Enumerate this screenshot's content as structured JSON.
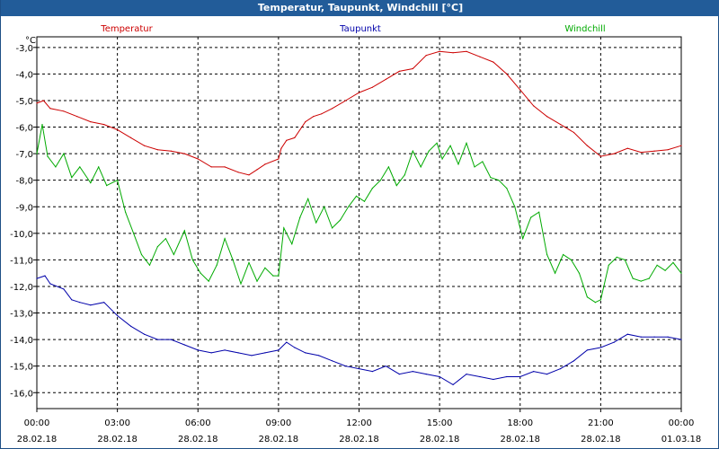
{
  "window": {
    "title": "Temperatur, Taupunkt, Windchill [°C]"
  },
  "colors": {
    "temperature": "#cc0000",
    "dewpoint": "#0000aa",
    "windchill": "#00aa00",
    "titlebar": "#225c99",
    "grid": "#000000"
  },
  "chart_data": {
    "type": "line",
    "title": "Temperatur, Taupunkt, Windchill [°C]",
    "ylabel": "°C",
    "xlabel": "",
    "ylim": [
      -16.0,
      -3.0
    ],
    "xlim": [
      0,
      24
    ],
    "grid": true,
    "legend": "top",
    "yticks": [
      "-3,0",
      "-4,0",
      "-5,0",
      "-6,0",
      "-7,0",
      "-8,0",
      "-9,0",
      "-10,0",
      "-11,0",
      "-12,0",
      "-13,0",
      "-14,0",
      "-15,0",
      "-16,0"
    ],
    "yticks_values": [
      -3,
      -4,
      -5,
      -6,
      -7,
      -8,
      -9,
      -10,
      -11,
      -12,
      -13,
      -14,
      -15,
      -16
    ],
    "xticks": [
      {
        "value": 0,
        "time": "00:00",
        "date": "28.02.18"
      },
      {
        "value": 3,
        "time": "03:00",
        "date": "28.02.18"
      },
      {
        "value": 6,
        "time": "06:00",
        "date": "28.02.18"
      },
      {
        "value": 9,
        "time": "09:00",
        "date": "28.02.18"
      },
      {
        "value": 12,
        "time": "12:00",
        "date": "28.02.18"
      },
      {
        "value": 15,
        "time": "15:00",
        "date": "28.02.18"
      },
      {
        "value": 18,
        "time": "18:00",
        "date": "28.02.18"
      },
      {
        "value": 21,
        "time": "21:00",
        "date": "28.02.18"
      },
      {
        "value": 24,
        "time": "00:00",
        "date": "01.03.18"
      }
    ],
    "series": [
      {
        "name": "Temperatur",
        "color": "#cc0000",
        "points": [
          [
            0,
            -5.1
          ],
          [
            0.25,
            -5.0
          ],
          [
            0.5,
            -5.3
          ],
          [
            1,
            -5.4
          ],
          [
            1.5,
            -5.6
          ],
          [
            2,
            -5.8
          ],
          [
            2.5,
            -5.9
          ],
          [
            3,
            -6.1
          ],
          [
            3.5,
            -6.4
          ],
          [
            4,
            -6.7
          ],
          [
            4.5,
            -6.85
          ],
          [
            5,
            -6.9
          ],
          [
            5.5,
            -7.0
          ],
          [
            6,
            -7.2
          ],
          [
            6.5,
            -7.5
          ],
          [
            7,
            -7.5
          ],
          [
            7.5,
            -7.7
          ],
          [
            7.9,
            -7.8
          ],
          [
            8.2,
            -7.6
          ],
          [
            8.5,
            -7.4
          ],
          [
            9,
            -7.2
          ],
          [
            9.1,
            -6.8
          ],
          [
            9.3,
            -6.5
          ],
          [
            9.6,
            -6.4
          ],
          [
            10,
            -5.8
          ],
          [
            10.3,
            -5.6
          ],
          [
            10.6,
            -5.5
          ],
          [
            11,
            -5.3
          ],
          [
            11.5,
            -5.0
          ],
          [
            12,
            -4.7
          ],
          [
            12.5,
            -4.5
          ],
          [
            13,
            -4.2
          ],
          [
            13.5,
            -3.9
          ],
          [
            14,
            -3.8
          ],
          [
            14.5,
            -3.3
          ],
          [
            15,
            -3.15
          ],
          [
            15.5,
            -3.2
          ],
          [
            16,
            -3.15
          ],
          [
            16.5,
            -3.35
          ],
          [
            17,
            -3.55
          ],
          [
            17.5,
            -4.0
          ],
          [
            18,
            -4.6
          ],
          [
            18.5,
            -5.2
          ],
          [
            19,
            -5.6
          ],
          [
            19.5,
            -5.9
          ],
          [
            20,
            -6.2
          ],
          [
            20.5,
            -6.7
          ],
          [
            21,
            -7.1
          ],
          [
            21.5,
            -7.0
          ],
          [
            22,
            -6.8
          ],
          [
            22.5,
            -6.95
          ],
          [
            23,
            -6.9
          ],
          [
            23.5,
            -6.85
          ],
          [
            24,
            -6.7
          ]
        ]
      },
      {
        "name": "Taupunkt",
        "color": "#0000aa",
        "points": [
          [
            0,
            -11.7
          ],
          [
            0.3,
            -11.6
          ],
          [
            0.5,
            -11.9
          ],
          [
            1,
            -12.1
          ],
          [
            1.3,
            -12.5
          ],
          [
            1.6,
            -12.6
          ],
          [
            2,
            -12.7
          ],
          [
            2.5,
            -12.6
          ],
          [
            3,
            -13.1
          ],
          [
            3.5,
            -13.5
          ],
          [
            4,
            -13.8
          ],
          [
            4.5,
            -14.0
          ],
          [
            5,
            -14.0
          ],
          [
            5.5,
            -14.2
          ],
          [
            6,
            -14.4
          ],
          [
            6.5,
            -14.5
          ],
          [
            7,
            -14.4
          ],
          [
            7.5,
            -14.5
          ],
          [
            8,
            -14.6
          ],
          [
            8.5,
            -14.5
          ],
          [
            9,
            -14.4
          ],
          [
            9.3,
            -14.1
          ],
          [
            9.6,
            -14.3
          ],
          [
            10,
            -14.5
          ],
          [
            10.5,
            -14.6
          ],
          [
            11,
            -14.8
          ],
          [
            11.5,
            -15.0
          ],
          [
            12,
            -15.1
          ],
          [
            12.5,
            -15.2
          ],
          [
            13,
            -15.0
          ],
          [
            13.5,
            -15.3
          ],
          [
            14,
            -15.2
          ],
          [
            14.5,
            -15.3
          ],
          [
            15,
            -15.4
          ],
          [
            15.5,
            -15.7
          ],
          [
            16,
            -15.3
          ],
          [
            16.5,
            -15.4
          ],
          [
            17,
            -15.5
          ],
          [
            17.5,
            -15.4
          ],
          [
            18,
            -15.4
          ],
          [
            18.5,
            -15.2
          ],
          [
            19,
            -15.3
          ],
          [
            19.5,
            -15.1
          ],
          [
            20,
            -14.8
          ],
          [
            20.5,
            -14.4
          ],
          [
            21,
            -14.3
          ],
          [
            21.5,
            -14.1
          ],
          [
            22,
            -13.8
          ],
          [
            22.5,
            -13.9
          ],
          [
            23,
            -13.9
          ],
          [
            23.5,
            -13.9
          ],
          [
            24,
            -14.0
          ]
        ]
      },
      {
        "name": "Windchill",
        "color": "#00aa00",
        "points": [
          [
            0,
            -7.0
          ],
          [
            0.2,
            -5.9
          ],
          [
            0.4,
            -7.1
          ],
          [
            0.7,
            -7.5
          ],
          [
            1,
            -7.0
          ],
          [
            1.3,
            -7.9
          ],
          [
            1.6,
            -7.5
          ],
          [
            2,
            -8.1
          ],
          [
            2.3,
            -7.5
          ],
          [
            2.6,
            -8.2
          ],
          [
            3,
            -8.0
          ],
          [
            3.3,
            -9.2
          ],
          [
            3.6,
            -10.0
          ],
          [
            3.9,
            -10.8
          ],
          [
            4.2,
            -11.2
          ],
          [
            4.5,
            -10.5
          ],
          [
            4.8,
            -10.2
          ],
          [
            5.1,
            -10.8
          ],
          [
            5.5,
            -9.9
          ],
          [
            5.8,
            -11.0
          ],
          [
            6.1,
            -11.5
          ],
          [
            6.4,
            -11.8
          ],
          [
            6.7,
            -11.2
          ],
          [
            7.0,
            -10.2
          ],
          [
            7.3,
            -11.0
          ],
          [
            7.6,
            -11.9
          ],
          [
            7.9,
            -11.1
          ],
          [
            8.2,
            -11.8
          ],
          [
            8.5,
            -11.3
          ],
          [
            8.8,
            -11.6
          ],
          [
            9.0,
            -11.6
          ],
          [
            9.2,
            -9.8
          ],
          [
            9.5,
            -10.4
          ],
          [
            9.8,
            -9.4
          ],
          [
            10.1,
            -8.7
          ],
          [
            10.4,
            -9.6
          ],
          [
            10.7,
            -9.0
          ],
          [
            11.0,
            -9.8
          ],
          [
            11.3,
            -9.5
          ],
          [
            11.6,
            -9.0
          ],
          [
            11.9,
            -8.6
          ],
          [
            12.2,
            -8.8
          ],
          [
            12.5,
            -8.3
          ],
          [
            12.8,
            -8.0
          ],
          [
            13.1,
            -7.5
          ],
          [
            13.4,
            -8.2
          ],
          [
            13.7,
            -7.8
          ],
          [
            14.0,
            -6.9
          ],
          [
            14.3,
            -7.5
          ],
          [
            14.6,
            -6.9
          ],
          [
            14.9,
            -6.6
          ],
          [
            15.1,
            -7.2
          ],
          [
            15.4,
            -6.7
          ],
          [
            15.7,
            -7.4
          ],
          [
            16.0,
            -6.6
          ],
          [
            16.3,
            -7.5
          ],
          [
            16.6,
            -7.3
          ],
          [
            16.9,
            -7.9
          ],
          [
            17.2,
            -8.0
          ],
          [
            17.5,
            -8.3
          ],
          [
            17.8,
            -9.0
          ],
          [
            18.1,
            -10.2
          ],
          [
            18.4,
            -9.4
          ],
          [
            18.7,
            -9.2
          ],
          [
            19.0,
            -10.8
          ],
          [
            19.3,
            -11.5
          ],
          [
            19.6,
            -10.8
          ],
          [
            19.9,
            -11.0
          ],
          [
            20.2,
            -11.5
          ],
          [
            20.5,
            -12.4
          ],
          [
            20.8,
            -12.6
          ],
          [
            21.0,
            -12.5
          ],
          [
            21.3,
            -11.2
          ],
          [
            21.6,
            -10.9
          ],
          [
            21.9,
            -11.0
          ],
          [
            22.2,
            -11.7
          ],
          [
            22.5,
            -11.8
          ],
          [
            22.8,
            -11.7
          ],
          [
            23.1,
            -11.2
          ],
          [
            23.4,
            -11.4
          ],
          [
            23.7,
            -11.1
          ],
          [
            24,
            -11.5
          ]
        ]
      }
    ]
  }
}
